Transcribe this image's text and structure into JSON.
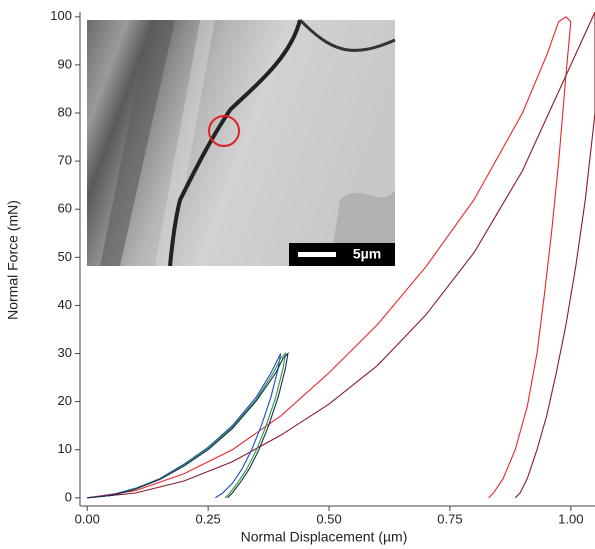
{
  "chart_data": {
    "type": "line",
    "x_label": "Normal Displacement (µm)",
    "y_label": "Normal Force (mN)",
    "annotation": "5µm",
    "xlim": [
      -0.015,
      1.05
    ],
    "ylim": [
      -1.7,
      101
    ],
    "xticks": [
      {
        "value": 0,
        "label": "0.00"
      },
      {
        "value": 0.25,
        "label": "0.25"
      },
      {
        "value": 0.5,
        "label": "0.50"
      },
      {
        "value": 0.75,
        "label": "0.75"
      },
      {
        "value": 1,
        "label": "1.00"
      }
    ],
    "yticks": [
      0,
      10,
      20,
      30,
      40,
      50,
      60,
      70,
      80,
      90,
      100
    ],
    "series": [
      {
        "color": "#e8262b",
        "x": [
          0,
          0.1,
          0.2,
          0.3,
          0.4,
          0.5,
          0.6,
          0.7,
          0.8,
          0.9,
          0.95,
          0.975,
          0.99,
          1.0,
          0.99,
          0.975,
          0.96,
          0.945,
          0.93,
          0.91,
          0.885,
          0.86,
          0.84,
          0.83
        ],
        "values": [
          0,
          1.5,
          5,
          10,
          17,
          26,
          36,
          48,
          62,
          80,
          92,
          99,
          100,
          99,
          88,
          70,
          55,
          42,
          30,
          19,
          10,
          4,
          1,
          0
        ]
      },
      {
        "color": "#8b1a2b",
        "x": [
          0,
          0.1,
          0.2,
          0.3,
          0.4,
          0.5,
          0.6,
          0.7,
          0.8,
          0.9,
          1.0,
          1.05,
          1.05,
          1.03,
          1.01,
          0.99,
          0.97,
          0.95,
          0.93,
          0.91,
          0.895,
          0.885
        ],
        "values": [
          0,
          1,
          3.5,
          7.5,
          13,
          19.5,
          27.5,
          38,
          51,
          68,
          90,
          101,
          80,
          62,
          48,
          36,
          26,
          17,
          10,
          4,
          1,
          0
        ]
      },
      {
        "color": "#2346c8",
        "x": [
          0,
          0.05,
          0.1,
          0.15,
          0.2,
          0.25,
          0.3,
          0.35,
          0.38,
          0.395,
          0.4,
          0.395,
          0.38,
          0.36,
          0.34,
          0.32,
          0.3,
          0.28,
          0.265
        ],
        "values": [
          0,
          0.6,
          2,
          4,
          7,
          10.5,
          15,
          21,
          26,
          29,
          30,
          27,
          21,
          15,
          10,
          6,
          3,
          1,
          0
        ]
      },
      {
        "color": "#2a9a3a",
        "x": [
          0,
          0.05,
          0.1,
          0.15,
          0.2,
          0.25,
          0.3,
          0.35,
          0.385,
          0.4,
          0.41,
          0.405,
          0.39,
          0.37,
          0.35,
          0.33,
          0.31,
          0.295,
          0.285
        ],
        "values": [
          0,
          0.5,
          1.9,
          3.9,
          6.8,
          10.3,
          14.7,
          20.5,
          26,
          29,
          30,
          27,
          21,
          15,
          10,
          6,
          3,
          1,
          0
        ]
      },
      {
        "color": "#1c2a55",
        "x": [
          0,
          0.05,
          0.1,
          0.15,
          0.2,
          0.25,
          0.3,
          0.35,
          0.39,
          0.405,
          0.415,
          0.41,
          0.395,
          0.375,
          0.355,
          0.335,
          0.315,
          0.3,
          0.29
        ],
        "values": [
          0,
          0.5,
          1.8,
          3.8,
          6.6,
          10,
          14.4,
          20.2,
          26,
          29,
          30,
          27,
          21,
          15,
          10,
          6,
          3,
          1,
          0
        ]
      }
    ]
  }
}
